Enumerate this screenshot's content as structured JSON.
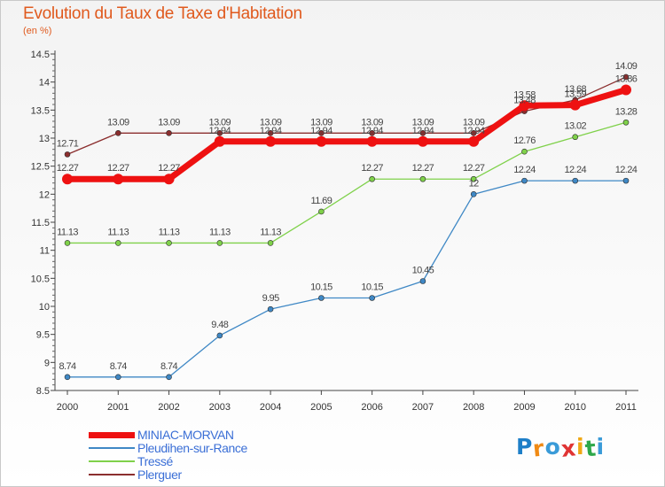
{
  "chart_data": {
    "type": "line",
    "title": "Evolution du Taux de Taxe d'Habitation",
    "subtitle": "(en %)",
    "xlabel": "",
    "ylabel": "",
    "x": [
      2000,
      2001,
      2002,
      2003,
      2004,
      2005,
      2006,
      2007,
      2008,
      2009,
      2010,
      2011
    ],
    "ylim": [
      8.5,
      14.5
    ],
    "y_ticks": [
      8.5,
      9,
      9.5,
      10,
      10.5,
      11,
      11.5,
      12,
      12.5,
      13,
      13.5,
      14,
      14.5
    ],
    "grid": false,
    "legend_position": "bottom-left",
    "series": [
      {
        "name": "MINIAC-MORVAN",
        "color": "#ee1111",
        "values": [
          12.27,
          12.27,
          12.27,
          12.94,
          12.94,
          12.94,
          12.94,
          12.94,
          12.94,
          13.58,
          13.59,
          13.86
        ],
        "labels": [
          "12.27",
          "12.27",
          "12.27",
          "12.94",
          "12.94",
          "12.94",
          "12.94",
          "12.94",
          "12.94",
          "13.58",
          "13.59",
          "13.86"
        ]
      },
      {
        "name": "Pleudihen-sur-Rance",
        "color": "#3f88c5",
        "values": [
          8.74,
          8.74,
          8.74,
          9.48,
          9.95,
          10.15,
          10.15,
          10.45,
          12,
          12.24,
          12.24,
          12.24
        ],
        "labels": [
          "8.74",
          "8.74",
          "8.74",
          "9.48",
          "9.95",
          "10.15",
          "10.15",
          "10.45",
          "12",
          "12.24",
          "12.24",
          "12.24"
        ]
      },
      {
        "name": "Tressé",
        "color": "#7fd14a",
        "values": [
          11.13,
          11.13,
          11.13,
          11.13,
          11.13,
          11.69,
          12.27,
          12.27,
          12.27,
          12.76,
          13.02,
          13.28
        ],
        "labels": [
          "11.13",
          "11.13",
          "11.13",
          "11.13",
          "11.13",
          "11.69",
          "12.27",
          "12.27",
          "12.27",
          "12.76",
          "13.02",
          "13.28"
        ]
      },
      {
        "name": "Plerguer",
        "color": "#8b2e2e",
        "values": [
          12.71,
          13.09,
          13.09,
          13.09,
          13.09,
          13.09,
          13.09,
          13.09,
          13.09,
          13.48,
          13.68,
          14.09
        ],
        "labels": [
          "12.71",
          "13.09",
          "13.09",
          "13.09",
          "13.09",
          "13.09",
          "13.09",
          "13.09",
          "13.09",
          "13.48",
          "13.68",
          "14.09"
        ]
      }
    ]
  },
  "branding": {
    "logo_text": "Proxiti",
    "logo_letter_colors": [
      "#1e7fc8",
      "#f08a14",
      "#3a9bd8",
      "#e03434",
      "#f0a814",
      "#2ea84a",
      "#3a9bd8"
    ]
  }
}
